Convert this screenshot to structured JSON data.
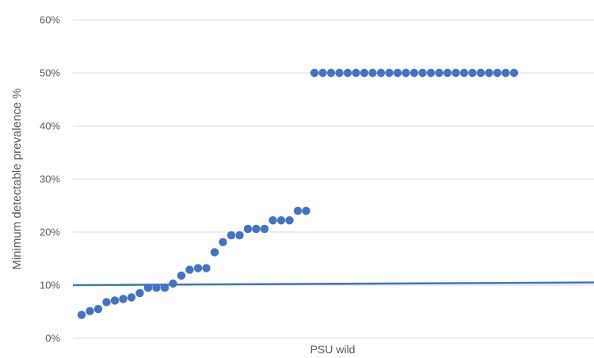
{
  "chart_data": {
    "type": "scatter",
    "title": "",
    "xlabel": "",
    "ylabel": "Minimum detectable prevalence %",
    "category_label": "PSU wild",
    "ylim": [
      0,
      60
    ],
    "y_ticks": [
      "0%",
      "10%",
      "20%",
      "30%",
      "40%",
      "50%",
      "60%"
    ],
    "grid": "horizontal",
    "legend": "none",
    "series": [
      {
        "values": [
          4.4,
          5.1,
          5.5,
          6.8,
          7.1,
          7.4,
          7.7,
          8.5,
          9.5,
          9.5,
          9.5,
          10.3,
          11.8,
          12.9,
          13.2,
          13.2,
          16.2,
          18.1,
          19.4,
          19.4,
          20.6,
          20.6,
          20.6,
          22.2,
          22.2,
          22.2,
          24.0,
          24.0,
          50,
          50,
          50,
          50,
          50,
          50,
          50,
          50,
          50,
          50,
          50,
          50,
          50,
          50,
          50,
          50,
          50,
          50,
          50,
          50,
          50,
          50,
          50,
          50,
          50
        ],
        "color": "#4472C4"
      }
    ],
    "reference_line": {
      "start": 10,
      "end": 10.5,
      "color": "#4472C4"
    }
  }
}
